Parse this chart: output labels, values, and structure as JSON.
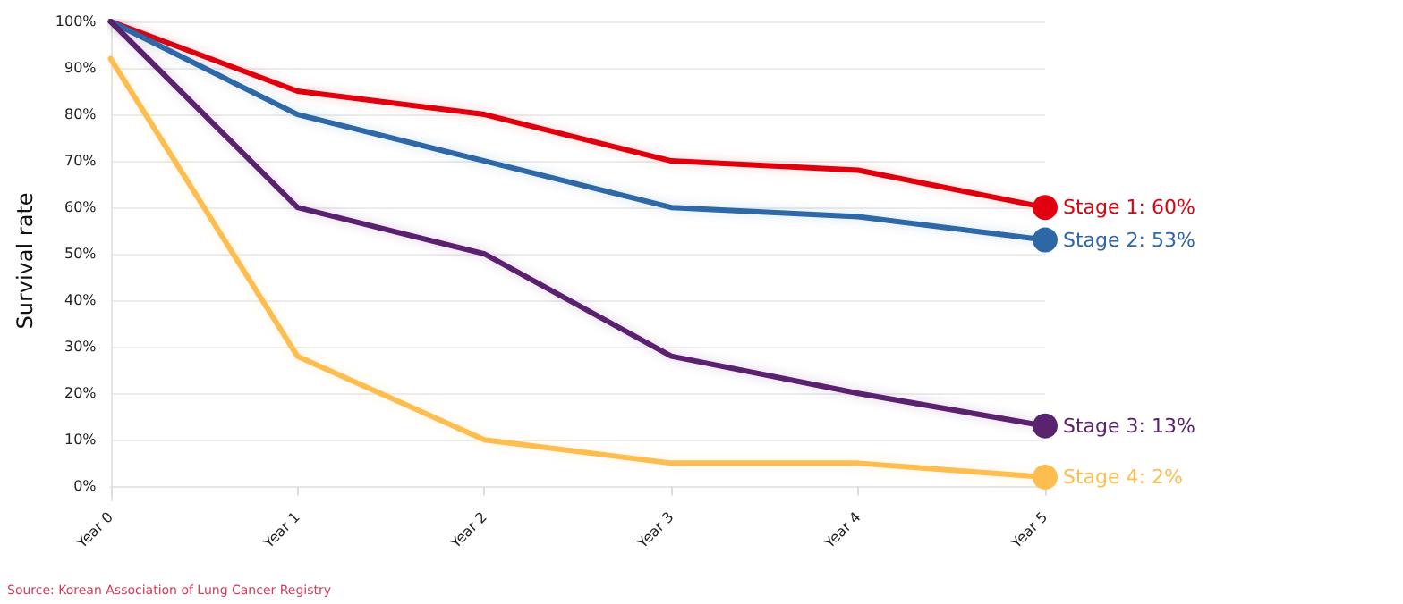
{
  "chart_data": {
    "type": "line",
    "ylabel": "Survival rate",
    "categories": [
      "Year 0",
      "Year 1",
      "Year 2",
      "Year 3",
      "Year 4",
      "Year 5"
    ],
    "ylim": [
      -3,
      100
    ],
    "yticks": [
      {
        "value": 0,
        "label": "0%"
      },
      {
        "value": 10,
        "label": "10%"
      },
      {
        "value": 20,
        "label": "20%"
      },
      {
        "value": 30,
        "label": "30%"
      },
      {
        "value": 40,
        "label": "40%"
      },
      {
        "value": 50,
        "label": "50%"
      },
      {
        "value": 60,
        "label": "60%"
      },
      {
        "value": 70,
        "label": "70%"
      },
      {
        "value": 80,
        "label": "80%"
      },
      {
        "value": 90,
        "label": "90%"
      },
      {
        "value": 100,
        "label": "100%"
      }
    ],
    "series": [
      {
        "name": "Stage 1: 60%",
        "color": "#e0000f",
        "values": [
          100,
          85,
          80,
          70,
          68,
          60
        ]
      },
      {
        "name": "Stage 2: 53%",
        "color": "#2e67a6",
        "values": [
          100,
          80,
          70,
          60,
          58,
          53
        ]
      },
      {
        "name": "Stage 3: 13%",
        "color": "#5a236e",
        "values": [
          100,
          60,
          50,
          28,
          20,
          13
        ]
      },
      {
        "name": "Stage 4: 2%",
        "color": "#fdbd4f",
        "values": [
          92,
          28,
          10,
          5,
          5,
          2
        ]
      }
    ],
    "grid": "y",
    "legend": false,
    "line_style": "solid",
    "annotations": [
      "Source: Korean Association of Lung Cancer Registry"
    ]
  }
}
